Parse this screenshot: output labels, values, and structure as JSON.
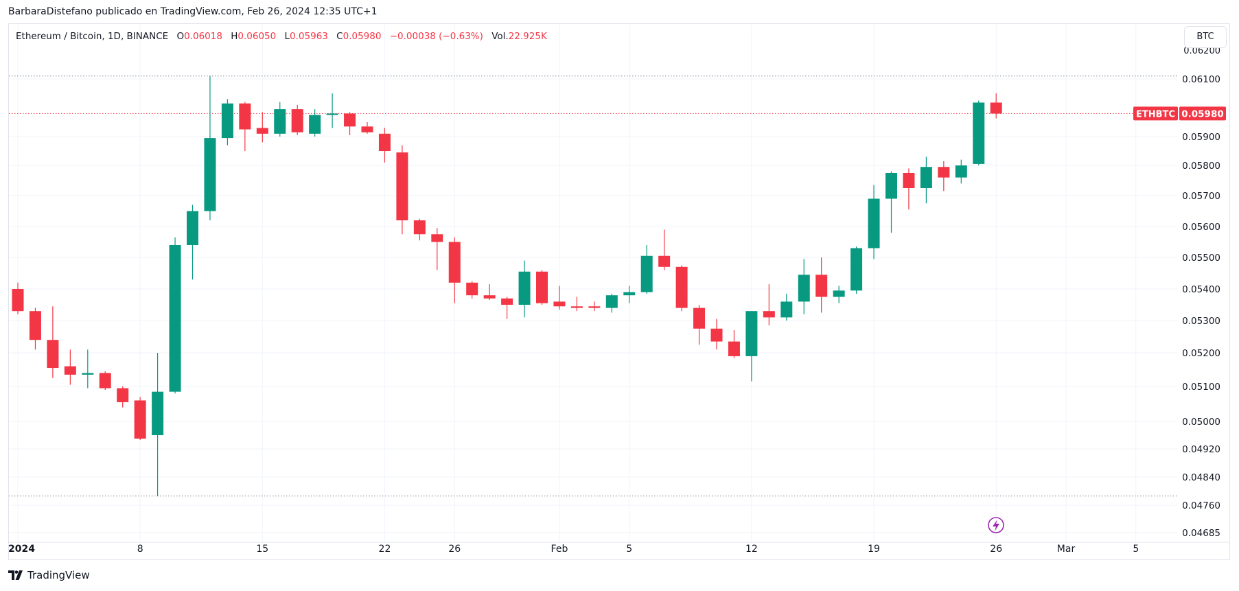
{
  "publisher_line": "BarbaraDistefano publicado en TradingView.com, Feb 26, 2024 12:35 UTC+1",
  "legend": {
    "symbol": "Ethereum / Bitcoin, 1D, BINANCE",
    "o_label": "O",
    "o_value": "0.06018",
    "h_label": "H",
    "h_value": "0.06050",
    "l_label": "L",
    "l_value": "0.05963",
    "c_label": "C",
    "c_value": "0.05980",
    "change": "−0.00038 (−0.63%)",
    "vol_label": "Vol.",
    "vol_value": "22.925K"
  },
  "currency_badge": "BTC",
  "footer_brand": "TradingView",
  "colors": {
    "up": "#089981",
    "down": "#f23645",
    "grid": "#f0f3fa",
    "text": "#131722",
    "lightning": "#9c27b0"
  },
  "chart_data": {
    "type": "candlestick",
    "symbol": "ETHBTC",
    "last_price_label": "0.05980",
    "y_tick_labels": [
      "0.06100",
      "0.05900",
      "0.05800",
      "0.05700",
      "0.05600",
      "0.05500",
      "0.05400",
      "0.05300",
      "0.05200",
      "0.05100",
      "0.05000",
      "0.04920",
      "0.04840",
      "0.04760",
      "0.04685"
    ],
    "y_tick_values": [
      0.061,
      0.059,
      0.058,
      0.057,
      0.056,
      0.055,
      0.054,
      0.053,
      0.052,
      0.051,
      0.05,
      0.0492,
      0.0484,
      0.0476,
      0.04685
    ],
    "x_tick_labels": [
      "2024",
      "8",
      "15",
      "22",
      "26",
      "Feb",
      "5",
      "12",
      "19",
      "26",
      "Mar",
      "5"
    ],
    "x_tick_dates": [
      "2024-01-01",
      "2024-01-08",
      "2024-01-15",
      "2024-01-22",
      "2024-01-26",
      "2024-02-01",
      "2024-02-05",
      "2024-02-12",
      "2024-02-19",
      "2024-02-26",
      "2024-03-01",
      "2024-03-05"
    ],
    "high_line": 0.0611,
    "low_line": 0.04786,
    "candles": [
      {
        "d": "2024-01-01",
        "o": 0.054,
        "h": 0.0542,
        "l": 0.0532,
        "c": 0.0533
      },
      {
        "d": "2024-01-02",
        "o": 0.0533,
        "h": 0.0534,
        "l": 0.0521,
        "c": 0.0524
      },
      {
        "d": "2024-01-03",
        "o": 0.0524,
        "h": 0.05345,
        "l": 0.05125,
        "c": 0.05155
      },
      {
        "d": "2024-01-04",
        "o": 0.0516,
        "h": 0.0521,
        "l": 0.05105,
        "c": 0.05135
      },
      {
        "d": "2024-01-05",
        "o": 0.05135,
        "h": 0.0521,
        "l": 0.05095,
        "c": 0.0514
      },
      {
        "d": "2024-01-06",
        "o": 0.0514,
        "h": 0.05145,
        "l": 0.0509,
        "c": 0.05095
      },
      {
        "d": "2024-01-07",
        "o": 0.05095,
        "h": 0.051,
        "l": 0.0504,
        "c": 0.05055
      },
      {
        "d": "2024-01-08",
        "o": 0.0506,
        "h": 0.0507,
        "l": 0.04946,
        "c": 0.0495
      },
      {
        "d": "2024-01-09",
        "o": 0.0496,
        "h": 0.052,
        "l": 0.04786,
        "c": 0.05085
      },
      {
        "d": "2024-01-10",
        "o": 0.05085,
        "h": 0.05565,
        "l": 0.0508,
        "c": 0.0554
      },
      {
        "d": "2024-01-11",
        "o": 0.0554,
        "h": 0.0567,
        "l": 0.0543,
        "c": 0.0565
      },
      {
        "d": "2024-01-12",
        "o": 0.0565,
        "h": 0.0611,
        "l": 0.0562,
        "c": 0.05895
      },
      {
        "d": "2024-01-13",
        "o": 0.05895,
        "h": 0.0603,
        "l": 0.0587,
        "c": 0.06015
      },
      {
        "d": "2024-01-14",
        "o": 0.06015,
        "h": 0.0602,
        "l": 0.0585,
        "c": 0.05925
      },
      {
        "d": "2024-01-15",
        "o": 0.0593,
        "h": 0.05985,
        "l": 0.0588,
        "c": 0.0591
      },
      {
        "d": "2024-01-16",
        "o": 0.0591,
        "h": 0.0602,
        "l": 0.059,
        "c": 0.05995
      },
      {
        "d": "2024-01-17",
        "o": 0.05995,
        "h": 0.0601,
        "l": 0.05905,
        "c": 0.05915
      },
      {
        "d": "2024-01-18",
        "o": 0.0591,
        "h": 0.05995,
        "l": 0.059,
        "c": 0.05975
      },
      {
        "d": "2024-01-19",
        "o": 0.05975,
        "h": 0.0605,
        "l": 0.0593,
        "c": 0.0598
      },
      {
        "d": "2024-01-20",
        "o": 0.0598,
        "h": 0.05985,
        "l": 0.05905,
        "c": 0.05935
      },
      {
        "d": "2024-01-21",
        "o": 0.05935,
        "h": 0.0595,
        "l": 0.0591,
        "c": 0.05915
      },
      {
        "d": "2024-01-22",
        "o": 0.0591,
        "h": 0.0593,
        "l": 0.0581,
        "c": 0.0585
      },
      {
        "d": "2024-01-23",
        "o": 0.05845,
        "h": 0.0587,
        "l": 0.05575,
        "c": 0.0562
      },
      {
        "d": "2024-01-24",
        "o": 0.0562,
        "h": 0.05625,
        "l": 0.05555,
        "c": 0.05575
      },
      {
        "d": "2024-01-25",
        "o": 0.05575,
        "h": 0.05595,
        "l": 0.0546,
        "c": 0.0555
      },
      {
        "d": "2024-01-26",
        "o": 0.0555,
        "h": 0.05565,
        "l": 0.05355,
        "c": 0.0542
      },
      {
        "d": "2024-01-27",
        "o": 0.0542,
        "h": 0.05425,
        "l": 0.0537,
        "c": 0.0538
      },
      {
        "d": "2024-01-28",
        "o": 0.0538,
        "h": 0.05415,
        "l": 0.05365,
        "c": 0.0537
      },
      {
        "d": "2024-01-29",
        "o": 0.0537,
        "h": 0.05375,
        "l": 0.05305,
        "c": 0.0535
      },
      {
        "d": "2024-01-30",
        "o": 0.0535,
        "h": 0.0549,
        "l": 0.0531,
        "c": 0.05455
      },
      {
        "d": "2024-01-31",
        "o": 0.05455,
        "h": 0.0546,
        "l": 0.0535,
        "c": 0.05355
      },
      {
        "d": "2024-02-01",
        "o": 0.0536,
        "h": 0.0541,
        "l": 0.05335,
        "c": 0.05345
      },
      {
        "d": "2024-02-02",
        "o": 0.05345,
        "h": 0.05375,
        "l": 0.0533,
        "c": 0.0534
      },
      {
        "d": "2024-02-03",
        "o": 0.05345,
        "h": 0.0536,
        "l": 0.0533,
        "c": 0.0534
      },
      {
        "d": "2024-02-04",
        "o": 0.0534,
        "h": 0.05385,
        "l": 0.05325,
        "c": 0.0538
      },
      {
        "d": "2024-02-05",
        "o": 0.0538,
        "h": 0.0541,
        "l": 0.05355,
        "c": 0.0539
      },
      {
        "d": "2024-02-06",
        "o": 0.0539,
        "h": 0.0554,
        "l": 0.05385,
        "c": 0.05505
      },
      {
        "d": "2024-02-07",
        "o": 0.05505,
        "h": 0.0559,
        "l": 0.0546,
        "c": 0.0547
      },
      {
        "d": "2024-02-08",
        "o": 0.0547,
        "h": 0.05475,
        "l": 0.0533,
        "c": 0.0534
      },
      {
        "d": "2024-02-09",
        "o": 0.0534,
        "h": 0.0535,
        "l": 0.05225,
        "c": 0.05275
      },
      {
        "d": "2024-02-10",
        "o": 0.05275,
        "h": 0.05305,
        "l": 0.0521,
        "c": 0.05235
      },
      {
        "d": "2024-02-11",
        "o": 0.05235,
        "h": 0.0527,
        "l": 0.05185,
        "c": 0.0519
      },
      {
        "d": "2024-02-12",
        "o": 0.0519,
        "h": 0.0533,
        "l": 0.05115,
        "c": 0.0533
      },
      {
        "d": "2024-02-13",
        "o": 0.0533,
        "h": 0.05415,
        "l": 0.05285,
        "c": 0.0531
      },
      {
        "d": "2024-02-14",
        "o": 0.0531,
        "h": 0.05385,
        "l": 0.053,
        "c": 0.0536
      },
      {
        "d": "2024-02-15",
        "o": 0.0536,
        "h": 0.05495,
        "l": 0.0532,
        "c": 0.05445
      },
      {
        "d": "2024-02-16",
        "o": 0.05445,
        "h": 0.055,
        "l": 0.05325,
        "c": 0.05375
      },
      {
        "d": "2024-02-17",
        "o": 0.05375,
        "h": 0.0541,
        "l": 0.05355,
        "c": 0.05395
      },
      {
        "d": "2024-02-18",
        "o": 0.05395,
        "h": 0.05535,
        "l": 0.05385,
        "c": 0.0553
      },
      {
        "d": "2024-02-19",
        "o": 0.0553,
        "h": 0.05735,
        "l": 0.05495,
        "c": 0.0569
      },
      {
        "d": "2024-02-20",
        "o": 0.0569,
        "h": 0.0578,
        "l": 0.0558,
        "c": 0.05775
      },
      {
        "d": "2024-02-21",
        "o": 0.05775,
        "h": 0.0579,
        "l": 0.05655,
        "c": 0.05725
      },
      {
        "d": "2024-02-22",
        "o": 0.05725,
        "h": 0.0583,
        "l": 0.05675,
        "c": 0.05795
      },
      {
        "d": "2024-02-23",
        "o": 0.05795,
        "h": 0.05815,
        "l": 0.05715,
        "c": 0.0576
      },
      {
        "d": "2024-02-24",
        "o": 0.0576,
        "h": 0.0582,
        "l": 0.0574,
        "c": 0.058
      },
      {
        "d": "2024-02-25",
        "o": 0.05805,
        "h": 0.06025,
        "l": 0.058,
        "c": 0.06018
      },
      {
        "d": "2024-02-26",
        "o": 0.06018,
        "h": 0.0605,
        "l": 0.05963,
        "c": 0.0598
      }
    ]
  }
}
